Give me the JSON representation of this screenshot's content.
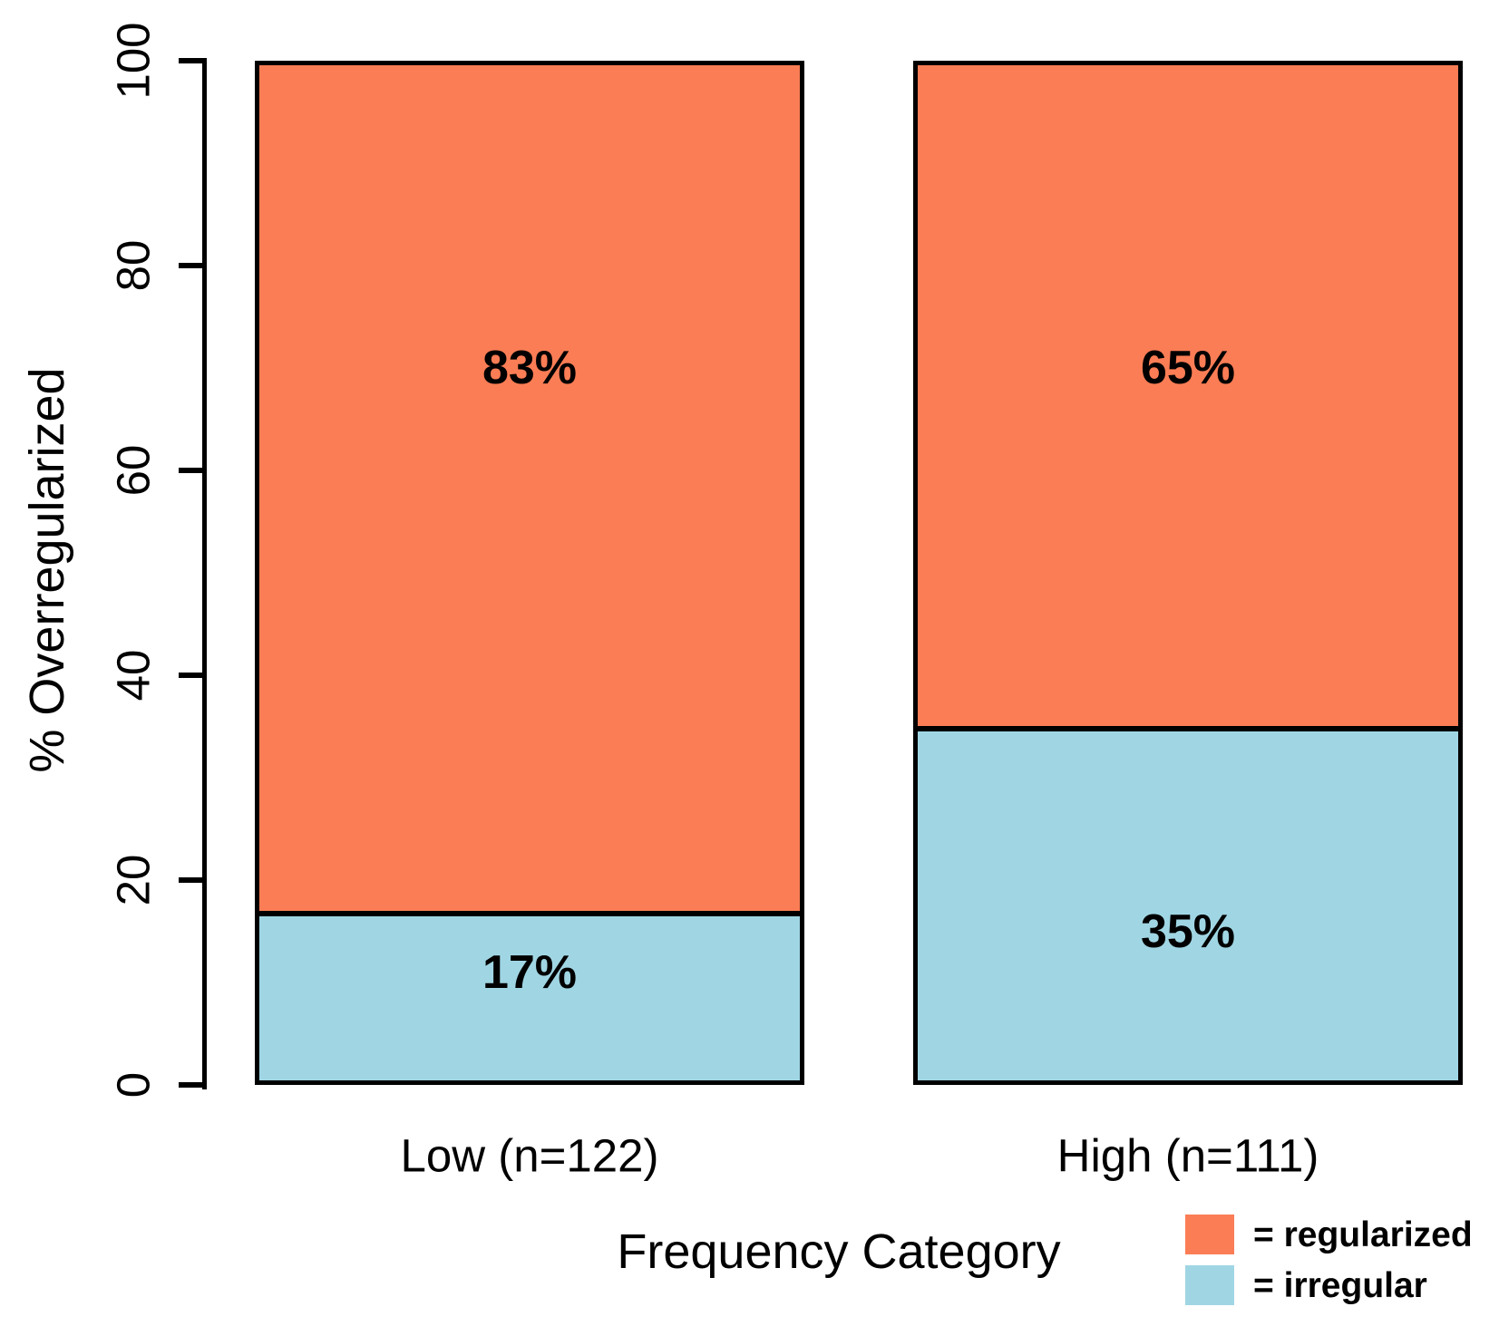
{
  "colors": {
    "regularized": "#FB7D55",
    "irregular": "#A0D6E4",
    "axis": "#000000",
    "text": "#000000",
    "background": "#FFFFFF"
  },
  "y_axis": {
    "title": "% Overregularized",
    "tick_labels": [
      "0",
      "20",
      "40",
      "60",
      "80",
      "100"
    ]
  },
  "x_axis": {
    "title": "Frequency Category"
  },
  "legend": {
    "items": [
      {
        "label": "= regularized",
        "series": "regularized",
        "color": "#FB7D55"
      },
      {
        "label": "= irregular",
        "series": "irregular",
        "color": "#A0D6E4"
      }
    ]
  },
  "chart_data": {
    "type": "bar",
    "subtype": "stacked_percentage",
    "title": "",
    "xlabel": "Frequency Category",
    "ylabel": "% Overregularized",
    "categories": [
      "Low (n=122)",
      "High (n=111)"
    ],
    "series": [
      {
        "name": "regularized",
        "color": "#FB7D55",
        "values": [
          83,
          65
        ]
      },
      {
        "name": "irregular",
        "color": "#A0D6E4",
        "values": [
          17,
          35
        ]
      }
    ],
    "bar_value_labels": [
      {
        "category": "Low (n=122)",
        "labels": [
          {
            "text": "83%",
            "y": 70
          },
          {
            "text": "17%",
            "y": 11
          }
        ]
      },
      {
        "category": "High (n=111)",
        "labels": [
          {
            "text": "65%",
            "y": 70
          },
          {
            "text": "35%",
            "y": 15
          }
        ]
      }
    ],
    "sample_sizes": {
      "Low": 122,
      "High": 111
    },
    "ylim": [
      0,
      100
    ],
    "yticks": [
      0,
      20,
      40,
      60,
      80,
      100
    ],
    "grid": false,
    "legend_position": "bottom-right"
  }
}
